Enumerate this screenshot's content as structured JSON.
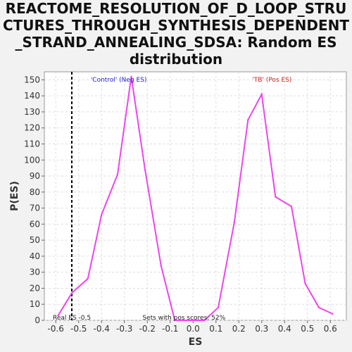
{
  "chart_data": {
    "type": "line",
    "title_lines": [
      "REACTOME_RESOLUTION_OF_D_LOOP_STRU",
      "CTURES_THROUGH_SYNTHESIS_DEPENDENT",
      "_STRAND_ANNEALING_SDSA: Random ES",
      "distribution"
    ],
    "xlabel": "ES",
    "ylabel": "P(ES)",
    "xlim": [
      -0.65,
      0.67
    ],
    "ylim": [
      0,
      155
    ],
    "x_ticks": [
      -0.6,
      -0.5,
      -0.4,
      -0.3,
      -0.2,
      -0.1,
      0.0,
      0.1,
      0.2,
      0.3,
      0.4,
      0.5,
      0.6
    ],
    "x_tick_labels": [
      "-0.6",
      "-0.5",
      "-0.4",
      "-0.3",
      "-0.2",
      "-0.1",
      "0.0",
      "0.1",
      "0.2",
      "0.3",
      "0.4",
      "0.5",
      "0.6"
    ],
    "y_ticks": [
      0,
      10,
      20,
      30,
      40,
      50,
      60,
      70,
      80,
      90,
      100,
      110,
      120,
      130,
      140,
      150
    ],
    "y_tick_labels": [
      "0",
      "10",
      "20",
      "30",
      "40",
      "50",
      "60",
      "70",
      "80",
      "90",
      "100",
      "110",
      "120",
      "130",
      "140",
      "150"
    ],
    "grid": true,
    "series": [
      {
        "color": "#ee44ee",
        "x": [
          -0.59,
          -0.53,
          -0.46,
          -0.4,
          -0.33,
          -0.27,
          -0.21,
          -0.14,
          -0.08,
          -0.02,
          0.05,
          0.11,
          0.18,
          0.24,
          0.3,
          0.36,
          0.43,
          0.49,
          0.55,
          0.61
        ],
        "y": [
          3,
          17,
          26,
          66,
          91,
          152,
          94,
          34,
          0,
          0,
          0,
          8,
          61,
          125,
          141,
          77,
          71,
          23,
          8,
          4
        ]
      }
    ],
    "real_es": -0.53,
    "annotations": {
      "neg_label": "'Control' (Neg ES)",
      "pos_label": "'TB' (Pos ES)",
      "real_es_label": "Real ES -0.5",
      "pos_scores_label": "Sets with pos scores: 52%"
    },
    "colors": {
      "neg_label": "#2222cc",
      "pos_label": "#cc2222",
      "real_es_line": "#000000"
    }
  }
}
